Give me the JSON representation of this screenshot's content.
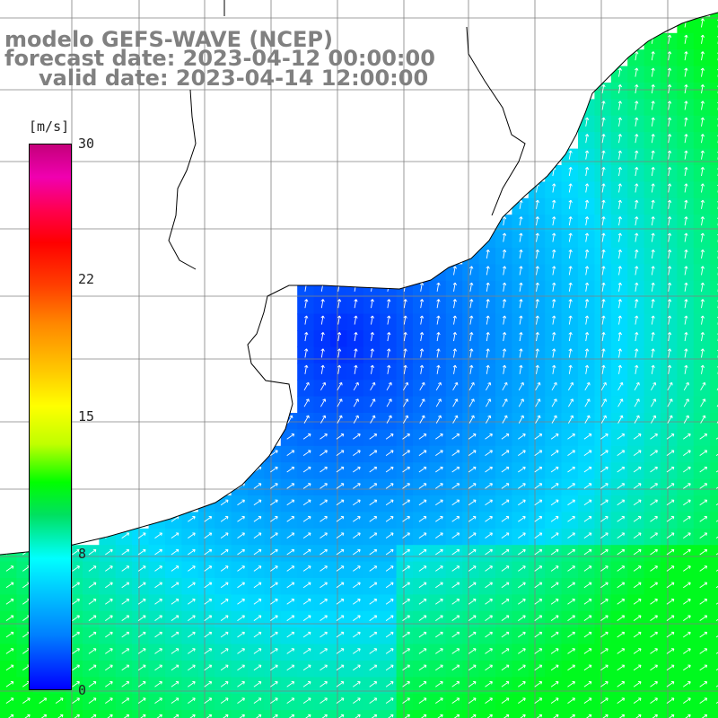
{
  "title": {
    "line1": "modelo GEFS-WAVE (NCEP)",
    "line2": "forecast date: 2023-04-12 00:00:00",
    "line3": "valid date: 2023-04-14 12:00:00"
  },
  "colorbar": {
    "unit": "[m/s]",
    "ticks": [
      "30",
      "22",
      "15",
      "8",
      "0"
    ],
    "min": 0,
    "max": 30
  },
  "map": {
    "variable": "wind speed",
    "field_colors": [
      "#0014ff",
      "#00c8ff",
      "#00ff40"
    ],
    "coast_color": "#000000",
    "grid_color": "#808080"
  }
}
